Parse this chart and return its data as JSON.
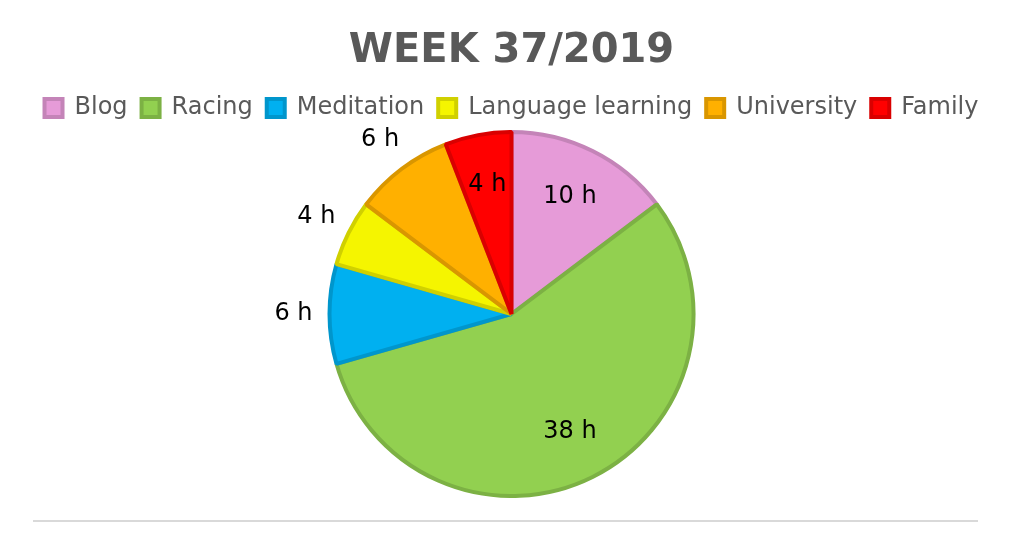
{
  "chart_data": {
    "type": "pie",
    "title": "WEEK 37/2019",
    "categories": [
      "Blog",
      "Racing",
      "Meditation",
      "Language learning",
      "University",
      "Family"
    ],
    "values": [
      10,
      38,
      6,
      4,
      6,
      4
    ],
    "value_labels": [
      "10 h",
      "38 h",
      "6 h",
      "4 h",
      "6 h",
      "4 h"
    ],
    "colors": [
      "#e69bd8",
      "#92d050",
      "#00b0f0",
      "#f5f500",
      "#ffb000",
      "#ff0000"
    ],
    "legend": "top"
  }
}
